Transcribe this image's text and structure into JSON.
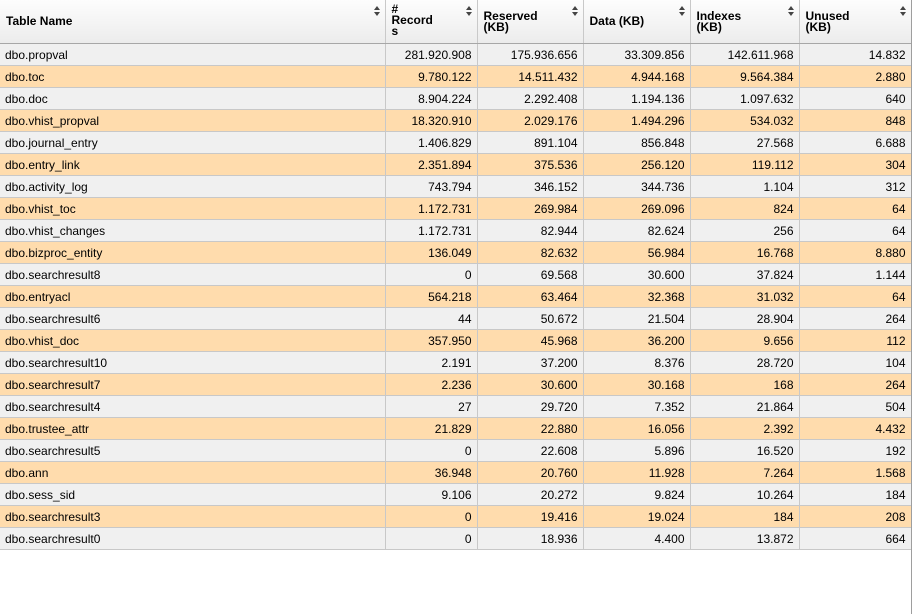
{
  "columns": [
    {
      "label": "Table Name"
    },
    {
      "label": "#\nRecord\ns"
    },
    {
      "label": "Reserved\n(KB)"
    },
    {
      "label": "Data (KB)"
    },
    {
      "label": "Indexes\n(KB)"
    },
    {
      "label": "Unused\n(KB)"
    }
  ],
  "sort_icon": "sort-arrows-icon",
  "colors": {
    "row_even": "#ffdcad",
    "row_odd": "#f0f0f0",
    "header_bg": "#efefef"
  },
  "rows": [
    [
      "dbo.propval",
      "281.920.908",
      "175.936.656",
      "33.309.856",
      "142.611.968",
      "14.832"
    ],
    [
      "dbo.toc",
      "9.780.122",
      "14.511.432",
      "4.944.168",
      "9.564.384",
      "2.880"
    ],
    [
      "dbo.doc",
      "8.904.224",
      "2.292.408",
      "1.194.136",
      "1.097.632",
      "640"
    ],
    [
      "dbo.vhist_propval",
      "18.320.910",
      "2.029.176",
      "1.494.296",
      "534.032",
      "848"
    ],
    [
      "dbo.journal_entry",
      "1.406.829",
      "891.104",
      "856.848",
      "27.568",
      "6.688"
    ],
    [
      "dbo.entry_link",
      "2.351.894",
      "375.536",
      "256.120",
      "119.112",
      "304"
    ],
    [
      "dbo.activity_log",
      "743.794",
      "346.152",
      "344.736",
      "1.104",
      "312"
    ],
    [
      "dbo.vhist_toc",
      "1.172.731",
      "269.984",
      "269.096",
      "824",
      "64"
    ],
    [
      "dbo.vhist_changes",
      "1.172.731",
      "82.944",
      "82.624",
      "256",
      "64"
    ],
    [
      "dbo.bizproc_entity",
      "136.049",
      "82.632",
      "56.984",
      "16.768",
      "8.880"
    ],
    [
      "dbo.searchresult8",
      "0",
      "69.568",
      "30.600",
      "37.824",
      "1.144"
    ],
    [
      "dbo.entryacl",
      "564.218",
      "63.464",
      "32.368",
      "31.032",
      "64"
    ],
    [
      "dbo.searchresult6",
      "44",
      "50.672",
      "21.504",
      "28.904",
      "264"
    ],
    [
      "dbo.vhist_doc",
      "357.950",
      "45.968",
      "36.200",
      "9.656",
      "112"
    ],
    [
      "dbo.searchresult10",
      "2.191",
      "37.200",
      "8.376",
      "28.720",
      "104"
    ],
    [
      "dbo.searchresult7",
      "2.236",
      "30.600",
      "30.168",
      "168",
      "264"
    ],
    [
      "dbo.searchresult4",
      "27",
      "29.720",
      "7.352",
      "21.864",
      "504"
    ],
    [
      "dbo.trustee_attr",
      "21.829",
      "22.880",
      "16.056",
      "2.392",
      "4.432"
    ],
    [
      "dbo.searchresult5",
      "0",
      "22.608",
      "5.896",
      "16.520",
      "192"
    ],
    [
      "dbo.ann",
      "36.948",
      "20.760",
      "11.928",
      "7.264",
      "1.568"
    ],
    [
      "dbo.sess_sid",
      "9.106",
      "20.272",
      "9.824",
      "10.264",
      "184"
    ],
    [
      "dbo.searchresult3",
      "0",
      "19.416",
      "19.024",
      "184",
      "208"
    ],
    [
      "dbo.searchresult0",
      "0",
      "18.936",
      "4.400",
      "13.872",
      "664"
    ]
  ]
}
